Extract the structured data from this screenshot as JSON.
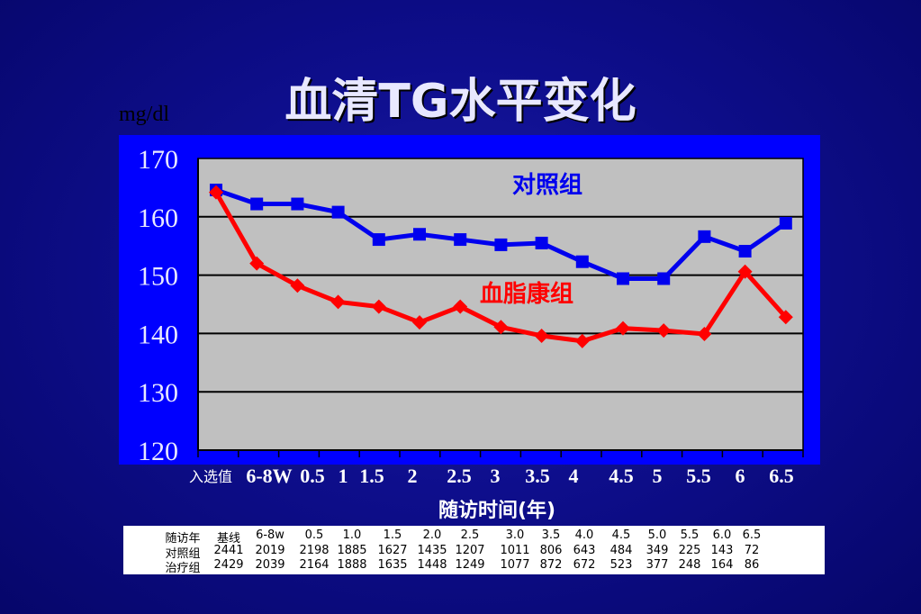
{
  "title": "血清TG水平变化",
  "unit_label": "mg/dl",
  "chart_data": {
    "type": "line",
    "title": "血清TG水平变化",
    "ylabel": "mg/dl",
    "xlabel": "随访时间(年)",
    "ylim": [
      120,
      170
    ],
    "yticks": [
      "120",
      "130",
      "140",
      "150",
      "160",
      "170"
    ],
    "categories": [
      "入选值",
      "6-8W",
      "0.5",
      "1",
      "1.5",
      "2",
      "2.5",
      "3",
      "3.5",
      "4",
      "4.5",
      "5",
      "5.5",
      "6",
      "6.5"
    ],
    "grid": true,
    "series": [
      {
        "name": "对照组",
        "color": "#0000ee",
        "marker": "square",
        "values": [
          164.6,
          162.2,
          162.2,
          160.8,
          156.1,
          157.0,
          156.1,
          155.2,
          155.5,
          152.3,
          149.4,
          149.4,
          156.6,
          154.1,
          158.9
        ]
      },
      {
        "name": "血脂康组",
        "color": "#ff0000",
        "marker": "diamond",
        "values": [
          164.2,
          152.0,
          148.2,
          145.4,
          144.6,
          141.9,
          144.6,
          141.1,
          139.6,
          138.7,
          140.9,
          140.5,
          139.9,
          150.6,
          142.8
        ]
      }
    ],
    "legend_placement": "inline labels"
  },
  "table": {
    "headers": [
      "随访年",
      "基线",
      "6-8w",
      "0.5",
      "1.0",
      "1.5",
      "2.0",
      "2.5",
      "3.0",
      "3.5",
      "4.0",
      "4.5",
      "5.0",
      "5.5",
      "6.0",
      "6.5"
    ],
    "rows": [
      [
        "对照组",
        "2441",
        "2019",
        "2198",
        "1885",
        "1627",
        "1435",
        "1207",
        "1011",
        "806",
        "643",
        "484",
        "349",
        "225",
        "143",
        "72"
      ],
      [
        "治疗组",
        "2429",
        "2039",
        "2164",
        "1888",
        "1635",
        "1448",
        "1249",
        "1077",
        "872",
        "672",
        "523",
        "377",
        "248",
        "164",
        "86"
      ]
    ]
  }
}
